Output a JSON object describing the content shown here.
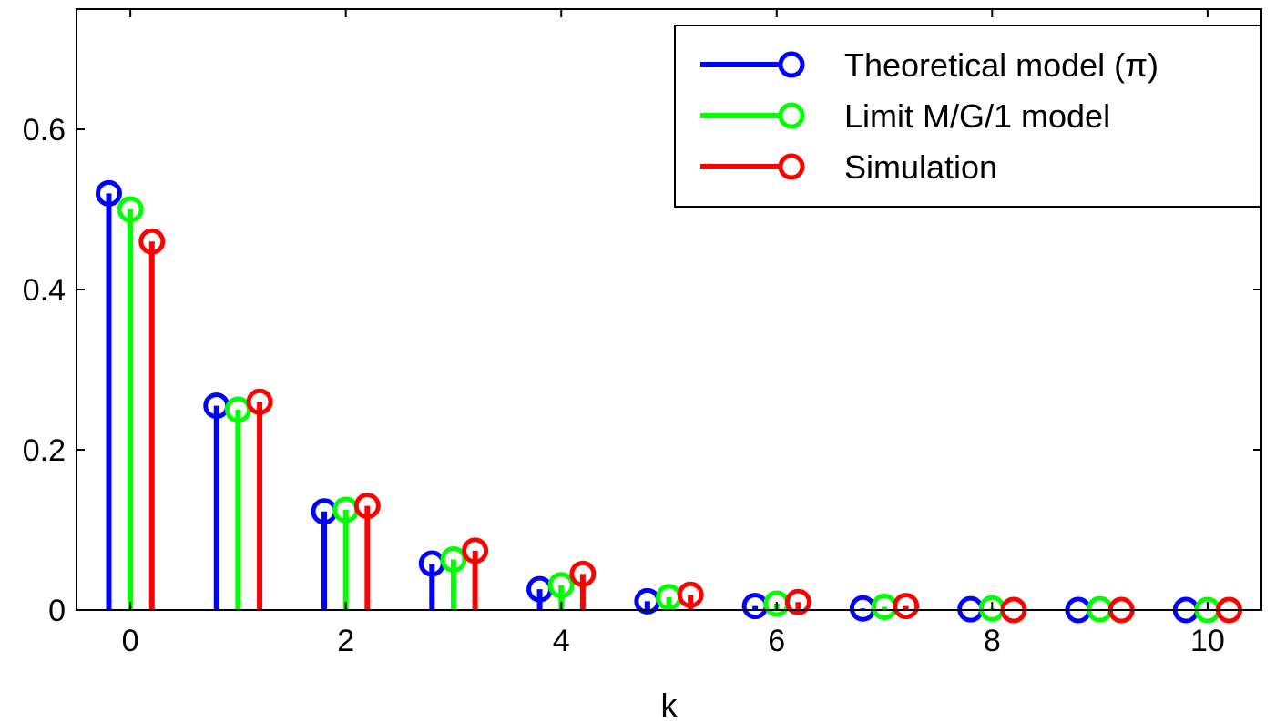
{
  "chart_data": {
    "type": "stem",
    "xlabel": "k",
    "ylabel": "",
    "xlim": [
      -0.5,
      10.5
    ],
    "ylim": [
      0,
      0.75
    ],
    "xticks": [
      0,
      2,
      4,
      6,
      8,
      10
    ],
    "yticks": [
      0,
      0.2,
      0.4,
      0.6
    ],
    "x": [
      0,
      1,
      2,
      3,
      4,
      5,
      6,
      7,
      8,
      9,
      10
    ],
    "legend_position": "top-right",
    "grid": false,
    "series": [
      {
        "name": "Theoretical model (π)",
        "color": "#0000ff",
        "offset": -0.2,
        "values": [
          0.52,
          0.255,
          0.123,
          0.058,
          0.026,
          0.011,
          0.005,
          0.002,
          0.001,
          0.0,
          0.0
        ]
      },
      {
        "name": "Limit M/G/1 model",
        "color": "#00ff00",
        "offset": 0.0,
        "values": [
          0.5,
          0.25,
          0.125,
          0.063,
          0.031,
          0.016,
          0.008,
          0.004,
          0.002,
          0.001,
          0.0
        ]
      },
      {
        "name": "Simulation",
        "color": "#ff0000",
        "offset": 0.2,
        "values": [
          0.46,
          0.26,
          0.13,
          0.074,
          0.045,
          0.019,
          0.01,
          0.005,
          0.0,
          0.0,
          0.0
        ]
      }
    ]
  }
}
